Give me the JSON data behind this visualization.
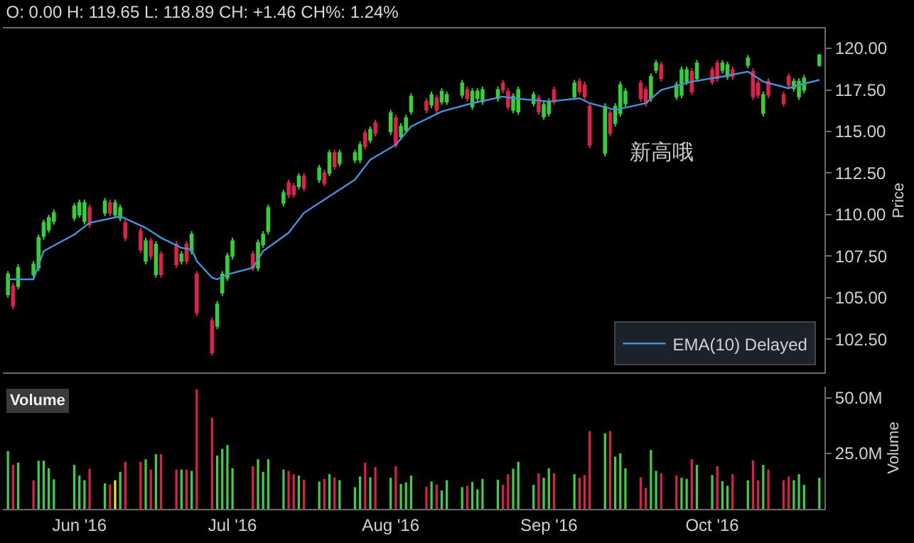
{
  "chart_data": [
    {
      "type": "candlestick",
      "title": "O: 0.00 H: 119.65 L: 118.89 CH: +1.46 CH%: 1.24%",
      "ylabel": "Price",
      "annotations": [
        "新高哦"
      ],
      "legend": "bottom right",
      "tick_labels": "y",
      "x": [
        "2016-05-18",
        "2016-05-19",
        "2016-05-20",
        "2016-05-23",
        "2016-05-24",
        "2016-05-25",
        "2016-05-26",
        "2016-05-27",
        "2016-05-31",
        "2016-06-01",
        "2016-06-02",
        "2016-06-03",
        "2016-06-06",
        "2016-06-07",
        "2016-06-08",
        "2016-06-09",
        "2016-06-10",
        "2016-06-13",
        "2016-06-14",
        "2016-06-15",
        "2016-06-16",
        "2016-06-17",
        "2016-06-20",
        "2016-06-21",
        "2016-06-22",
        "2016-06-23",
        "2016-06-24",
        "2016-06-27",
        "2016-06-28",
        "2016-06-29",
        "2016-06-30",
        "2016-07-01",
        "2016-07-05",
        "2016-07-06",
        "2016-07-07",
        "2016-07-08",
        "2016-07-11",
        "2016-07-12",
        "2016-07-13",
        "2016-07-14",
        "2016-07-15",
        "2016-07-18",
        "2016-07-19",
        "2016-07-20",
        "2016-07-21",
        "2016-07-22",
        "2016-07-25",
        "2016-07-26",
        "2016-07-27",
        "2016-07-28",
        "2016-07-29",
        "2016-08-01",
        "2016-08-02",
        "2016-08-03",
        "2016-08-04",
        "2016-08-05",
        "2016-08-08",
        "2016-08-09",
        "2016-08-10",
        "2016-08-11",
        "2016-08-12",
        "2016-08-15",
        "2016-08-16",
        "2016-08-17",
        "2016-08-18",
        "2016-08-19",
        "2016-08-22",
        "2016-08-23",
        "2016-08-24",
        "2016-08-25",
        "2016-08-26",
        "2016-08-29",
        "2016-08-30",
        "2016-08-31",
        "2016-09-01",
        "2016-09-02",
        "2016-09-06",
        "2016-09-07",
        "2016-09-08",
        "2016-09-09",
        "2016-09-12",
        "2016-09-13",
        "2016-09-14",
        "2016-09-15",
        "2016-09-16",
        "2016-09-19",
        "2016-09-20",
        "2016-09-21",
        "2016-09-22",
        "2016-09-23",
        "2016-09-26",
        "2016-09-27",
        "2016-09-28",
        "2016-09-29",
        "2016-09-30",
        "2016-10-03",
        "2016-10-04",
        "2016-10-05",
        "2016-10-06",
        "2016-10-07",
        "2016-10-10",
        "2016-10-11",
        "2016-10-12",
        "2016-10-13",
        "2016-10-14",
        "2016-10-17",
        "2016-10-18",
        "2016-10-19",
        "2016-10-20",
        "2016-10-21",
        "2016-10-24"
      ],
      "ohlc": [
        [
          105.2,
          106.6,
          105.0,
          106.4
        ],
        [
          105.7,
          105.9,
          104.3,
          104.5
        ],
        [
          105.7,
          107.0,
          105.5,
          106.8
        ],
        [
          106.4,
          107.2,
          106.2,
          107.0
        ],
        [
          106.8,
          108.8,
          106.6,
          108.6
        ],
        [
          108.7,
          109.7,
          108.5,
          109.5
        ],
        [
          109.1,
          110.0,
          108.9,
          109.8
        ],
        [
          109.6,
          110.3,
          109.4,
          110.1
        ],
        [
          109.8,
          110.7,
          109.6,
          110.5
        ],
        [
          110.0,
          110.9,
          109.8,
          110.7
        ],
        [
          109.6,
          110.9,
          109.4,
          110.7
        ],
        [
          110.4,
          110.6,
          109.2,
          109.4
        ],
        [
          110.1,
          111.0,
          109.9,
          110.8
        ],
        [
          110.7,
          110.9,
          109.9,
          110.1
        ],
        [
          110.0,
          110.9,
          109.8,
          110.7
        ],
        [
          109.8,
          110.6,
          109.6,
          110.4
        ],
        [
          109.5,
          109.7,
          108.4,
          108.6
        ],
        [
          109.0,
          109.2,
          107.7,
          107.9
        ],
        [
          107.2,
          108.6,
          107.0,
          108.4
        ],
        [
          108.4,
          108.6,
          107.3,
          107.5
        ],
        [
          106.4,
          108.4,
          106.2,
          108.2
        ],
        [
          107.6,
          107.8,
          106.2,
          106.4
        ],
        [
          108.2,
          108.4,
          106.8,
          107.0
        ],
        [
          107.2,
          107.8,
          107.0,
          107.6
        ],
        [
          108.2,
          108.4,
          107.0,
          107.2
        ],
        [
          107.8,
          109.0,
          107.6,
          108.8
        ],
        [
          106.4,
          106.6,
          103.9,
          104.1
        ],
        [
          103.6,
          103.8,
          101.5,
          101.7
        ],
        [
          103.3,
          104.8,
          103.1,
          104.6
        ],
        [
          105.3,
          106.6,
          105.1,
          106.4
        ],
        [
          106.2,
          107.7,
          106.0,
          107.5
        ],
        [
          107.5,
          108.6,
          107.3,
          108.4
        ],
        [
          107.6,
          107.8,
          106.6,
          106.8
        ],
        [
          106.8,
          108.5,
          106.6,
          108.3
        ],
        [
          108.2,
          109.0,
          108.0,
          108.8
        ],
        [
          109.0,
          110.6,
          108.8,
          110.4
        ],
        [
          110.7,
          111.5,
          110.5,
          111.3
        ],
        [
          111.9,
          112.1,
          111.0,
          111.2
        ],
        [
          111.7,
          111.9,
          111.0,
          111.2
        ],
        [
          111.7,
          112.5,
          111.5,
          112.3
        ],
        [
          112.3,
          112.5,
          111.4,
          111.6
        ],
        [
          112.1,
          113.0,
          111.9,
          112.8
        ],
        [
          112.5,
          112.7,
          111.7,
          111.9
        ],
        [
          112.5,
          113.9,
          112.3,
          113.7
        ],
        [
          113.7,
          113.9,
          112.7,
          112.9
        ],
        [
          113.1,
          113.9,
          112.9,
          113.7
        ],
        [
          113.3,
          113.9,
          113.1,
          113.7
        ],
        [
          113.3,
          114.4,
          113.1,
          114.2
        ],
        [
          114.9,
          115.1,
          113.9,
          114.1
        ],
        [
          114.5,
          115.3,
          114.3,
          115.1
        ],
        [
          115.5,
          115.7,
          114.7,
          114.9
        ],
        [
          115.0,
          116.3,
          114.8,
          116.1
        ],
        [
          115.8,
          116.0,
          114.0,
          114.2
        ],
        [
          114.7,
          115.5,
          114.5,
          115.3
        ],
        [
          115.1,
          116.0,
          114.9,
          115.8
        ],
        [
          116.2,
          117.3,
          116.0,
          117.1
        ],
        [
          116.8,
          117.0,
          116.1,
          116.3
        ],
        [
          116.6,
          117.4,
          116.4,
          117.2
        ],
        [
          117.0,
          117.2,
          116.1,
          116.3
        ],
        [
          116.8,
          117.6,
          116.6,
          117.4
        ],
        [
          116.8,
          117.4,
          116.6,
          117.2
        ],
        [
          117.2,
          118.1,
          117.0,
          117.9
        ],
        [
          117.5,
          117.7,
          116.8,
          117.0
        ],
        [
          116.5,
          117.6,
          116.3,
          117.4
        ],
        [
          117.0,
          117.6,
          116.8,
          117.4
        ],
        [
          116.8,
          117.7,
          116.6,
          117.5
        ],
        [
          117.0,
          117.7,
          116.8,
          117.5
        ],
        [
          117.9,
          118.1,
          117.3,
          117.5
        ],
        [
          117.4,
          117.6,
          116.3,
          116.5
        ],
        [
          116.3,
          117.3,
          116.1,
          117.1
        ],
        [
          116.2,
          117.7,
          116.0,
          117.5
        ],
        [
          116.7,
          117.4,
          116.5,
          117.2
        ],
        [
          117.0,
          117.2,
          116.0,
          116.2
        ],
        [
          115.9,
          116.8,
          115.7,
          116.6
        ],
        [
          116.1,
          117.0,
          115.9,
          116.8
        ],
        [
          117.5,
          117.7,
          116.6,
          116.8
        ],
        [
          117.1,
          118.1,
          116.9,
          117.9
        ],
        [
          118.0,
          118.2,
          117.2,
          117.4
        ],
        [
          117.8,
          118.0,
          116.9,
          117.1
        ],
        [
          116.5,
          116.7,
          114.0,
          114.2
        ],
        [
          113.7,
          116.7,
          113.5,
          116.5
        ],
        [
          116.1,
          116.3,
          114.7,
          114.9
        ],
        [
          115.5,
          116.7,
          115.3,
          116.5
        ],
        [
          116.1,
          118.0,
          115.9,
          117.8
        ],
        [
          116.7,
          117.6,
          116.5,
          117.4
        ],
        [
          117.9,
          118.1,
          116.8,
          117.0
        ],
        [
          117.5,
          117.7,
          116.5,
          116.7
        ],
        [
          117.0,
          118.5,
          116.8,
          118.3
        ],
        [
          118.7,
          119.3,
          118.5,
          119.1
        ],
        [
          119.0,
          119.2,
          118.0,
          118.2
        ],
        [
          117.1,
          118.0,
          116.9,
          117.8
        ],
        [
          117.2,
          118.9,
          117.0,
          118.7
        ],
        [
          118.0,
          118.9,
          117.8,
          118.7
        ],
        [
          118.6,
          118.8,
          117.2,
          117.4
        ],
        [
          118.2,
          119.3,
          118.0,
          119.1
        ],
        [
          118.7,
          118.9,
          117.8,
          118.0
        ],
        [
          119.1,
          119.3,
          118.0,
          118.2
        ],
        [
          118.7,
          119.3,
          118.5,
          119.1
        ],
        [
          118.3,
          119.2,
          118.1,
          119.0
        ],
        [
          118.7,
          118.9,
          118.1,
          118.3
        ],
        [
          119.0,
          119.6,
          118.8,
          119.4
        ],
        [
          118.6,
          118.8,
          116.9,
          117.1
        ],
        [
          117.9,
          118.1,
          117.0,
          117.2
        ],
        [
          116.1,
          117.4,
          115.9,
          117.2
        ],
        [
          118.0,
          118.2,
          117.0,
          117.2
        ],
        [
          117.2,
          117.4,
          116.5,
          116.7
        ],
        [
          118.3,
          118.5,
          117.6,
          117.8
        ],
        [
          117.6,
          118.2,
          117.4,
          118.0
        ],
        [
          117.1,
          118.2,
          116.9,
          118.0
        ],
        [
          117.5,
          118.4,
          117.3,
          118.2
        ],
        [
          119.0,
          119.65,
          118.89,
          119.6
        ]
      ],
      "series": [
        {
          "type": "line",
          "name": "EMA(10) Delayed",
          "color": "#4a8fd8",
          "x": [
            "2016-05-18",
            "2016-05-23",
            "2016-05-25",
            "2016-05-31",
            "2016-06-03",
            "2016-06-09",
            "2016-06-14",
            "2016-06-17",
            "2016-06-21",
            "2016-06-23",
            "2016-06-24",
            "2016-06-27",
            "2016-06-28",
            "2016-06-30",
            "2016-07-05",
            "2016-07-07",
            "2016-07-12",
            "2016-07-15",
            "2016-07-25",
            "2016-07-28",
            "2016-08-02",
            "2016-08-05",
            "2016-08-11",
            "2016-08-17",
            "2016-08-23",
            "2016-08-25",
            "2016-09-01",
            "2016-09-07",
            "2016-09-09",
            "2016-09-14",
            "2016-09-20",
            "2016-09-23",
            "2016-09-29",
            "2016-10-05",
            "2016-10-10",
            "2016-10-13",
            "2016-10-18",
            "2016-10-20",
            "2016-10-24"
          ],
          "values": [
            106.1,
            106.1,
            107.8,
            108.8,
            109.5,
            109.9,
            109.2,
            108.6,
            108.0,
            107.9,
            107.2,
            106.2,
            106.1,
            106.4,
            106.8,
            107.8,
            108.9,
            110.1,
            112.1,
            113.3,
            114.2,
            115.3,
            116.2,
            116.7,
            117.1,
            117.0,
            116.8,
            117.0,
            116.7,
            116.3,
            116.7,
            117.5,
            118.0,
            118.3,
            118.6,
            118.0,
            117.6,
            117.8,
            118.1
          ]
        }
      ],
      "xlim": [
        "2016-05-17",
        "2016-10-25"
      ],
      "ylim": [
        100.5,
        121.2
      ],
      "yticks": [
        {
          "value": 102.5,
          "label": "102.50"
        },
        {
          "value": 105,
          "label": "105.00"
        },
        {
          "value": 107.5,
          "label": "107.50"
        },
        {
          "value": 110,
          "label": "110.00"
        },
        {
          "value": 112.5,
          "label": "112.50"
        },
        {
          "value": 115,
          "label": "115.00"
        },
        {
          "value": 117.5,
          "label": "117.50"
        },
        {
          "value": 120,
          "label": "120.00"
        }
      ]
    },
    {
      "type": "bar",
      "title": "Volume",
      "ylabel": "Volume",
      "x": [
        "2016-05-18",
        "2016-05-19",
        "2016-05-20",
        "2016-05-23",
        "2016-05-24",
        "2016-05-25",
        "2016-05-26",
        "2016-05-27",
        "2016-05-31",
        "2016-06-01",
        "2016-06-02",
        "2016-06-03",
        "2016-06-06",
        "2016-06-07",
        "2016-06-08",
        "2016-06-09",
        "2016-06-10",
        "2016-06-13",
        "2016-06-14",
        "2016-06-15",
        "2016-06-16",
        "2016-06-17",
        "2016-06-20",
        "2016-06-21",
        "2016-06-22",
        "2016-06-23",
        "2016-06-24",
        "2016-06-27",
        "2016-06-28",
        "2016-06-29",
        "2016-06-30",
        "2016-07-01",
        "2016-07-05",
        "2016-07-06",
        "2016-07-07",
        "2016-07-08",
        "2016-07-11",
        "2016-07-12",
        "2016-07-13",
        "2016-07-14",
        "2016-07-15",
        "2016-07-18",
        "2016-07-19",
        "2016-07-20",
        "2016-07-21",
        "2016-07-22",
        "2016-07-25",
        "2016-07-26",
        "2016-07-27",
        "2016-07-28",
        "2016-07-29",
        "2016-08-01",
        "2016-08-02",
        "2016-08-03",
        "2016-08-04",
        "2016-08-05",
        "2016-08-08",
        "2016-08-09",
        "2016-08-10",
        "2016-08-11",
        "2016-08-12",
        "2016-08-15",
        "2016-08-16",
        "2016-08-17",
        "2016-08-18",
        "2016-08-19",
        "2016-08-22",
        "2016-08-23",
        "2016-08-24",
        "2016-08-25",
        "2016-08-26",
        "2016-08-29",
        "2016-08-30",
        "2016-08-31",
        "2016-09-01",
        "2016-09-02",
        "2016-09-06",
        "2016-09-07",
        "2016-09-08",
        "2016-09-09",
        "2016-09-12",
        "2016-09-13",
        "2016-09-14",
        "2016-09-15",
        "2016-09-16",
        "2016-09-19",
        "2016-09-20",
        "2016-09-21",
        "2016-09-22",
        "2016-09-23",
        "2016-09-26",
        "2016-09-27",
        "2016-09-28",
        "2016-09-29",
        "2016-09-30",
        "2016-10-03",
        "2016-10-04",
        "2016-10-05",
        "2016-10-06",
        "2016-10-07",
        "2016-10-10",
        "2016-10-11",
        "2016-10-12",
        "2016-10-13",
        "2016-10-14",
        "2016-10-17",
        "2016-10-18",
        "2016-10-19",
        "2016-10-20",
        "2016-10-21",
        "2016-10-24"
      ],
      "values": [
        26,
        19.8,
        20.8,
        12.9,
        21.7,
        21.7,
        18.3,
        13.3,
        19.8,
        15,
        12.9,
        18.1,
        11.5,
        11,
        12.9,
        16.7,
        21.2,
        21.2,
        22.3,
        17.7,
        24.6,
        24.6,
        17.7,
        17.7,
        17.7,
        17.1,
        53.7,
        41,
        24,
        27,
        28.7,
        18.3,
        19.2,
        22.3,
        16.7,
        22.3,
        17.7,
        17.1,
        15.6,
        15,
        13.1,
        12.3,
        13.5,
        15.6,
        14.2,
        12.9,
        9.8,
        14.6,
        20.8,
        14.2,
        18.8,
        14,
        19.2,
        11.2,
        11.9,
        15,
        10,
        12.3,
        11,
        8.3,
        12.9,
        9.8,
        10.4,
        12.1,
        8.8,
        13.5,
        13.1,
        10.8,
        15.6,
        18.1,
        21.2,
        10.8,
        16,
        14,
        18.3,
        16,
        15.6,
        14,
        15.2,
        35,
        34,
        35,
        23.5,
        25,
        18.3,
        14.2,
        9.4,
        26.5,
        17.1,
        16,
        15,
        14,
        13.5,
        22.3,
        19.8,
        15.2,
        19.2,
        12.5,
        10.4,
        15.6,
        12.9,
        21.9,
        12.9,
        19.8,
        17.7,
        12.9,
        14.6,
        12.9,
        15.6,
        10.8,
        14
      ],
      "colors": [
        "#3fd03f",
        "#d8204a",
        "#3fd03f",
        "#d8204a",
        "#3fd03f",
        "#3fd03f",
        "#3fd03f",
        "#3fd03f",
        "#3fd03f",
        "#3fd03f",
        "#3fd03f",
        "#d8204a",
        "#3fd03f",
        "#d8204a",
        "#e8e040",
        "#3fd03f",
        "#d8204a",
        "#d8204a",
        "#3fd03f",
        "#d8204a",
        "#3fd03f",
        "#d8204a",
        "#d8204a",
        "#3fd03f",
        "#d8204a",
        "#3fd03f",
        "#d8204a",
        "#d8204a",
        "#3fd03f",
        "#3fd03f",
        "#3fd03f",
        "#3fd03f",
        "#d8204a",
        "#3fd03f",
        "#3fd03f",
        "#3fd03f",
        "#3fd03f",
        "#d8204a",
        "#d8204a",
        "#3fd03f",
        "#d8204a",
        "#3fd03f",
        "#d8204a",
        "#3fd03f",
        "#d8204a",
        "#3fd03f",
        "#3fd03f",
        "#3fd03f",
        "#d8204a",
        "#3fd03f",
        "#d8204a",
        "#3fd03f",
        "#d8204a",
        "#3fd03f",
        "#3fd03f",
        "#3fd03f",
        "#d8204a",
        "#3fd03f",
        "#d8204a",
        "#3fd03f",
        "#3fd03f",
        "#3fd03f",
        "#d8204a",
        "#3fd03f",
        "#3fd03f",
        "#3fd03f",
        "#3fd03f",
        "#d8204a",
        "#d8204a",
        "#3fd03f",
        "#3fd03f",
        "#3fd03f",
        "#d8204a",
        "#3fd03f",
        "#3fd03f",
        "#d8204a",
        "#3fd03f",
        "#d8204a",
        "#d8204a",
        "#d8204a",
        "#3fd03f",
        "#d8204a",
        "#3fd03f",
        "#3fd03f",
        "#3fd03f",
        "#d8204a",
        "#d8204a",
        "#3fd03f",
        "#3fd03f",
        "#d8204a",
        "#d8204a",
        "#3fd03f",
        "#3fd03f",
        "#d8204a",
        "#3fd03f",
        "#3fd03f",
        "#d8204a",
        "#3fd03f",
        "#3fd03f",
        "#d8204a",
        "#3fd03f",
        "#d8204a",
        "#d8204a",
        "#3fd03f",
        "#d8204a",
        "#d8204a",
        "#d8204a",
        "#3fd03f",
        "#3fd03f",
        "#3fd03f",
        "#3fd03f"
      ],
      "xlim": [
        "2016-05-17",
        "2016-10-25"
      ],
      "xticks": [
        {
          "value": "2016-06-01",
          "label": "Jun '16"
        },
        {
          "value": "2016-07-01",
          "label": "Jul '16"
        },
        {
          "value": "2016-08-01",
          "label": "Aug '16"
        },
        {
          "value": "2016-09-01",
          "label": "Sep '16"
        },
        {
          "value": "2016-10-03",
          "label": "Oct '16"
        }
      ],
      "ylim": [
        0,
        55
      ],
      "yticks": [
        {
          "value": 25,
          "label": "25.0M"
        },
        {
          "value": 50,
          "label": "50.0M"
        }
      ]
    }
  ]
}
